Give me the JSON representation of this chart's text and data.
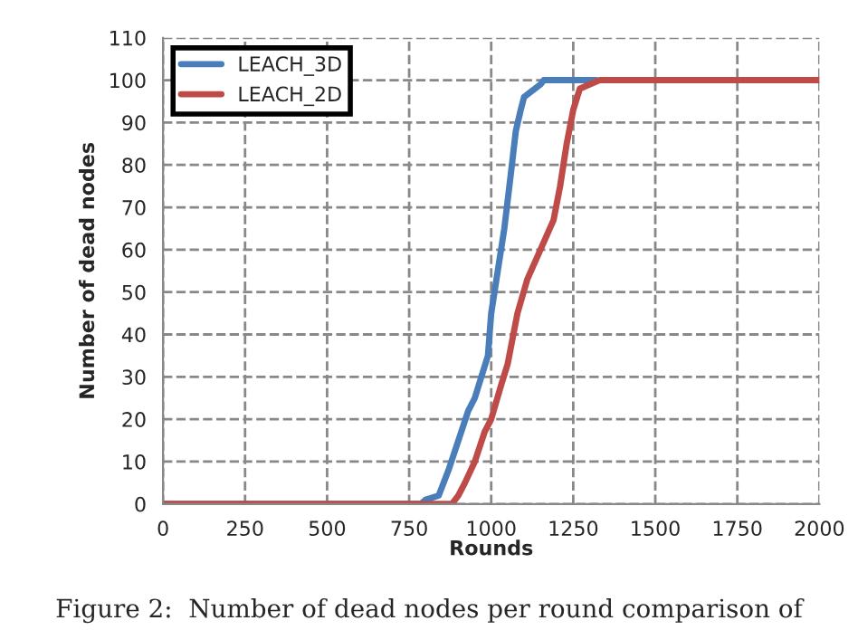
{
  "chart_data": {
    "type": "line",
    "xlabel": "Rounds",
    "ylabel": "Number of dead nodes",
    "series": [
      {
        "name": "LEACH_3D",
        "color": "#4a7ebb",
        "x": [
          0,
          785,
          800,
          840,
          870,
          900,
          930,
          950,
          970,
          990,
          1000,
          1020,
          1040,
          1060,
          1075,
          1090,
          1100,
          1150,
          1160,
          1320
        ],
        "values": [
          0,
          0,
          1,
          2,
          8,
          15,
          22,
          25,
          30,
          35,
          45,
          55,
          65,
          78,
          88,
          93,
          96,
          99,
          100,
          100
        ]
      },
      {
        "name": "LEACH_2D",
        "color": "#be4b48",
        "x": [
          0,
          880,
          900,
          920,
          950,
          980,
          1000,
          1030,
          1050,
          1080,
          1110,
          1150,
          1190,
          1210,
          1230,
          1250,
          1270,
          1330,
          2000
        ],
        "values": [
          0,
          0,
          2,
          5,
          10,
          17,
          20,
          28,
          33,
          45,
          53,
          60,
          67,
          75,
          85,
          93,
          98,
          100,
          100
        ]
      }
    ],
    "xlim": [
      0,
      2000
    ],
    "xticks": [
      0,
      250,
      500,
      750,
      1000,
      1250,
      1500,
      1750,
      2000
    ],
    "ylim": [
      0,
      110
    ],
    "yticks": [
      0,
      10,
      20,
      30,
      40,
      50,
      60,
      70,
      80,
      90,
      100,
      110
    ],
    "grid": true,
    "legend": "top left",
    "line_style": "solid",
    "marker": "none",
    "annotations": [
      "Figure 2:  Number of dead nodes per round comparison of"
    ]
  }
}
